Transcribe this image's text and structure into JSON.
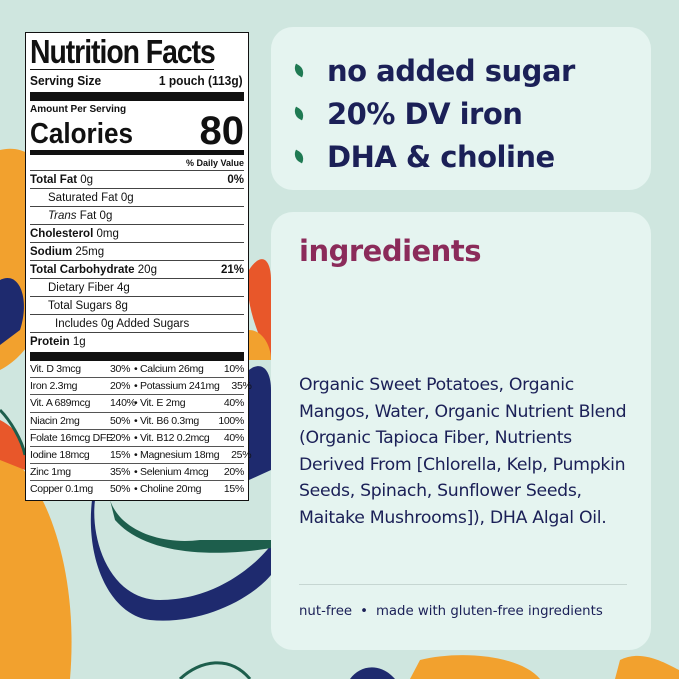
{
  "colors": {
    "background": "#cfe6df",
    "panel": "#e5f4f0",
    "navy": "#1b2057",
    "plum": "#8b2b5a",
    "leaf": "#1f7a53",
    "orange": "#f2a12e",
    "red": "#e8572a"
  },
  "nutrition": {
    "title": "Nutrition Facts",
    "serving_size_label": "Serving Size",
    "serving_size_value": "1 pouch (113g)",
    "amount_per_serving": "Amount Per Serving",
    "calories_label": "Calories",
    "calories_value": "80",
    "daily_value_header": "% Daily Value",
    "rows": [
      {
        "name": "Total Fat",
        "amount": "0g",
        "dv": "0%"
      },
      {
        "name": "Saturated Fat",
        "amount": "0g",
        "dv": ""
      },
      {
        "name": "Trans",
        "amount": "Fat 0g",
        "dv": ""
      },
      {
        "name": "Cholesterol",
        "amount": "0mg",
        "dv": ""
      },
      {
        "name": "Sodium",
        "amount": "25mg",
        "dv": ""
      },
      {
        "name": "Total Carbohydrate",
        "amount": "20g",
        "dv": "21%"
      },
      {
        "name": "Dietary Fiber",
        "amount": "4g",
        "dv": ""
      },
      {
        "name": "Total Sugars",
        "amount": "8g",
        "dv": ""
      },
      {
        "name": "Includes 0g Added Sugars",
        "amount": "",
        "dv": ""
      },
      {
        "name": "Protein",
        "amount": "1g",
        "dv": ""
      }
    ],
    "vitamins": [
      [
        "Vit. D 3mcg",
        "30%",
        "Calcium 26mg",
        "10%"
      ],
      [
        "Iron 2.3mg",
        "20%",
        "Potassium 241mg",
        "35%"
      ],
      [
        "Vit. A 689mcg",
        "140%",
        "Vit. E 2mg",
        "40%"
      ],
      [
        "Niacin 2mg",
        "50%",
        "Vit. B6 0.3mg",
        "100%"
      ],
      [
        "Folate 16mcg DFE",
        "20%",
        "Vit. B12 0.2mcg",
        "40%"
      ],
      [
        "Iodine 18mcg",
        "15%",
        "Magnesium 18mg",
        "25%"
      ],
      [
        "Zinc 1mg",
        "35%",
        "Selenium 4mcg",
        "20%"
      ],
      [
        "Copper 0.1mg",
        "50%",
        "Choline 20mg",
        "15%"
      ]
    ]
  },
  "highlights": {
    "icon": "leaf-icon",
    "items": [
      "no added sugar",
      "20% DV iron",
      "DHA & choline"
    ]
  },
  "ingredients": {
    "title": "ingredients",
    "text": "Organic Sweet Potatoes, Organic Mangos, Water, Organic Nutrient Blend (Organic Tapioca Fiber, Nutrients Derived From [Chlorella, Kelp, Pumpkin Seeds, Spinach, Sunflower Seeds, Maitake Mushrooms]), DHA Algal Oil.",
    "footer": [
      "nut-free",
      "made with gluten-free ingredients"
    ]
  }
}
